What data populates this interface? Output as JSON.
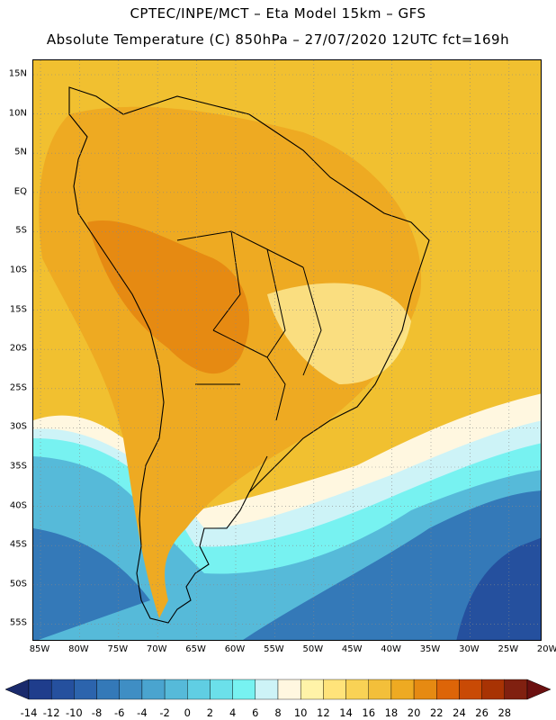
{
  "title_line1": "CPTEC/INPE/MCT –  Eta Model 15km – GFS",
  "title_line2": "Absolute Temperature (C) 850hPa – 27/07/2020 12UTC fct=169h",
  "y_labels": [
    "15N",
    "10N",
    "5N",
    "EQ",
    "5S",
    "10S",
    "15S",
    "20S",
    "25S",
    "30S",
    "35S",
    "40S",
    "45S",
    "50S",
    "55S"
  ],
  "x_labels": [
    "85W",
    "80W",
    "75W",
    "70W",
    "65W",
    "60W",
    "55W",
    "50W",
    "45W",
    "40W",
    "35W",
    "30W",
    "25W",
    "20W"
  ],
  "colorbar": {
    "labels": [
      "-14",
      "-12",
      "-10",
      "-8",
      "-6",
      "-4",
      "-2",
      "0",
      "2",
      "4",
      "6",
      "8",
      "10",
      "12",
      "14",
      "16",
      "18",
      "20",
      "22",
      "24",
      "26",
      "28"
    ],
    "colors": [
      "#1f3d8c",
      "#25509e",
      "#2c64ad",
      "#3479b8",
      "#3f8ec4",
      "#4aa4cf",
      "#56bad9",
      "#60cee3",
      "#6be0ea",
      "#77f2f1",
      "#cdf3f7",
      "#fff7e0",
      "#fff3a8",
      "#ffe37a",
      "#f9d255",
      "#f3bf3a",
      "#eeaa22",
      "#e68a12",
      "#dd6508",
      "#c94a05",
      "#a83304",
      "#802010"
    ],
    "under_color": "#1a2a6c",
    "over_color": "#6b1010"
  },
  "map_colors": {
    "ocean_warm": "#f1c030",
    "land_warm": "#eeaa22",
    "land_hot": "#e68a12",
    "yellow": "#fff3a8",
    "cream": "#fff7e0",
    "pale_blue": "#cdf3f7",
    "cyan": "#77f2f1",
    "light_blue": "#56bad9",
    "blue": "#3479b8",
    "dark_blue": "#25509e",
    "coast": "#000000"
  }
}
